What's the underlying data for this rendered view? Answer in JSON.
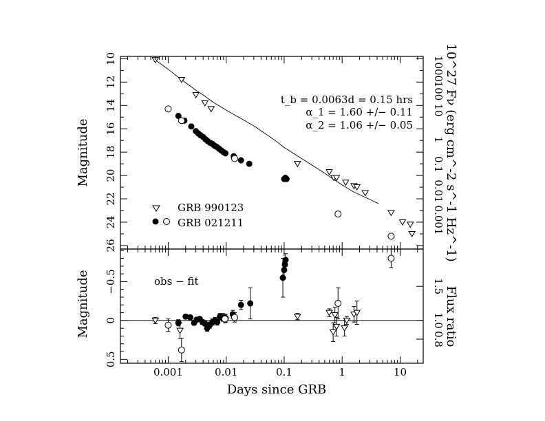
{
  "chart_data": [
    {
      "type": "scatter",
      "panel": "light curve",
      "xlabel": "Days since GRB",
      "ylabel": "Magnitude",
      "right_ylabel": "10^27 Fν (erg cm^-2 s^-1 Hz^-1)",
      "x_scale": "log",
      "xlim": [
        0.00015,
        25
      ],
      "ylim": [
        26.3,
        9.8
      ],
      "y_inverted": true,
      "y_ticks": [
        10,
        12,
        14,
        16,
        18,
        20,
        22,
        24,
        26
      ],
      "right_ticks": [
        "1000",
        "100",
        "10",
        "1",
        "0.1",
        "0.01",
        "0.001"
      ],
      "annotations": {
        "tb": "t_b = 0.0063d = 0.15 hrs",
        "alpha1": "α_1 = 1.60 +/− 0.11",
        "alpha2": "α_2 = 1.06 +/− 0.05"
      },
      "legend": {
        "placement": "bottom-left",
        "entries": [
          {
            "label": "GRB 990123",
            "markers": [
              "open-triangle-down"
            ]
          },
          {
            "label": "GRB 021211",
            "markers": [
              "filled-circle",
              "open-circle"
            ]
          }
        ]
      },
      "fit_line": {
        "label": "broken power-law fit",
        "x": [
          0.0006,
          0.00075,
          0.001,
          0.0013,
          0.0017,
          0.002,
          0.0025,
          0.003,
          0.004,
          0.005,
          0.0063,
          0.008,
          0.01,
          0.015,
          0.02,
          0.03,
          0.05,
          0.07,
          0.1,
          0.15,
          0.2,
          0.3,
          0.5,
          0.7,
          1.0,
          1.5,
          2.0,
          3.0,
          4.2
        ],
        "y": [
          10.1,
          10.45,
          10.9,
          11.35,
          11.8,
          12.05,
          12.4,
          12.7,
          13.1,
          13.45,
          13.8,
          14.1,
          14.4,
          14.9,
          15.25,
          15.75,
          16.5,
          17.0,
          17.6,
          18.15,
          18.55,
          19.1,
          19.8,
          20.3,
          20.8,
          21.35,
          21.65,
          22.05,
          22.4
        ]
      },
      "series": [
        {
          "name": "GRB 990123",
          "marker": "open-triangle-down",
          "points": [
            {
              "x": 0.0006,
              "y": 10.1
            },
            {
              "x": 0.0017,
              "y": 11.8
            },
            {
              "x": 0.003,
              "y": 13.1
            },
            {
              "x": 0.0043,
              "y": 13.8
            },
            {
              "x": 0.0055,
              "y": 14.3
            },
            {
              "x": 0.17,
              "y": 19.0
            },
            {
              "x": 0.6,
              "y": 19.7
            },
            {
              "x": 0.72,
              "y": 20.2
            },
            {
              "x": 0.8,
              "y": 20.2
            },
            {
              "x": 1.15,
              "y": 20.6
            },
            {
              "x": 1.6,
              "y": 20.9
            },
            {
              "x": 1.8,
              "y": 21.0
            },
            {
              "x": 2.5,
              "y": 21.5
            },
            {
              "x": 7.0,
              "y": 23.2
            },
            {
              "x": 11.0,
              "y": 24.0
            },
            {
              "x": 15.0,
              "y": 24.2
            },
            {
              "x": 16.0,
              "y": 25.0
            }
          ]
        },
        {
          "name": "GRB 021211",
          "marker": "filled-circle",
          "points": [
            {
              "x": 0.0015,
              "y": 14.9
            },
            {
              "x": 0.0019,
              "y": 15.3
            },
            {
              "x": 0.0025,
              "y": 15.8
            },
            {
              "x": 0.003,
              "y": 16.2
            },
            {
              "x": 0.0033,
              "y": 16.4
            },
            {
              "x": 0.0036,
              "y": 16.55
            },
            {
              "x": 0.004,
              "y": 16.7
            },
            {
              "x": 0.0044,
              "y": 16.9
            },
            {
              "x": 0.0048,
              "y": 17.05
            },
            {
              "x": 0.0053,
              "y": 17.2
            },
            {
              "x": 0.0058,
              "y": 17.3
            },
            {
              "x": 0.0063,
              "y": 17.45
            },
            {
              "x": 0.0069,
              "y": 17.55
            },
            {
              "x": 0.0075,
              "y": 17.7
            },
            {
              "x": 0.0082,
              "y": 17.85
            },
            {
              "x": 0.009,
              "y": 18.0
            },
            {
              "x": 0.0097,
              "y": 18.1
            },
            {
              "x": 0.0135,
              "y": 18.35
            },
            {
              "x": 0.018,
              "y": 18.7
            },
            {
              "x": 0.025,
              "y": 19.0
            },
            {
              "x": 0.1,
              "y": 20.3
            },
            {
              "x": 0.105,
              "y": 20.2
            },
            {
              "x": 0.11,
              "y": 20.3
            }
          ]
        },
        {
          "name": "GRB 021211",
          "marker": "open-circle",
          "points": [
            {
              "x": 0.001,
              "y": 14.3
            },
            {
              "x": 0.0017,
              "y": 15.3
            },
            {
              "x": 0.014,
              "y": 18.55
            },
            {
              "x": 0.85,
              "y": 23.3
            },
            {
              "x": 7.0,
              "y": 25.2
            }
          ]
        }
      ]
    },
    {
      "type": "scatter",
      "panel": "residuals",
      "xlabel": "Days since GRB",
      "ylabel": "Magnitude",
      "right_ylabel": "Flux ratio",
      "annotation": "obs − fit",
      "x_scale": "log",
      "xlim": [
        0.00015,
        25
      ],
      "ylim": [
        0.55,
        -0.92
      ],
      "y_inverted": true,
      "y_ticks": [
        -0.5,
        0,
        0.5
      ],
      "y_tick_labels": [
        "−0.5",
        "0",
        "0.5"
      ],
      "right_ticks": [
        {
          "label": "1.5",
          "mag": -0.44
        },
        {
          "label": "1.0",
          "mag": 0.0
        },
        {
          "label": "0.8",
          "mag": 0.24
        }
      ],
      "zero_line": 0,
      "series": [
        {
          "name": "GRB 990123",
          "marker": "open-triangle-down",
          "points": [
            {
              "x": 0.0006,
              "y": 0.0,
              "err": 0.04
            },
            {
              "x": 0.0016,
              "y": 0.13,
              "err": 0.1
            },
            {
              "x": 0.17,
              "y": -0.05,
              "err": 0.04
            },
            {
              "x": 0.6,
              "y": -0.1,
              "err": 0.05
            },
            {
              "x": 0.7,
              "y": 0.15,
              "err": 0.12
            },
            {
              "x": 0.75,
              "y": -0.07,
              "err": 0.1
            },
            {
              "x": 0.8,
              "y": 0.08,
              "err": 0.12
            },
            {
              "x": 1.1,
              "y": 0.1,
              "err": 0.1
            },
            {
              "x": 1.2,
              "y": 0.0,
              "err": 0.05
            },
            {
              "x": 1.6,
              "y": -0.08,
              "err": 0.1
            },
            {
              "x": 1.8,
              "y": -0.1,
              "err": 0.15
            }
          ]
        },
        {
          "name": "GRB 021211",
          "marker": "filled-circle",
          "points": [
            {
              "x": 0.0015,
              "y": 0.03,
              "err": 0.04
            },
            {
              "x": 0.002,
              "y": -0.05,
              "err": 0.03
            },
            {
              "x": 0.0024,
              "y": -0.04,
              "err": 0.03
            },
            {
              "x": 0.0028,
              "y": 0.03,
              "err": 0.03
            },
            {
              "x": 0.0031,
              "y": -0.01,
              "err": 0.03
            },
            {
              "x": 0.0035,
              "y": -0.02,
              "err": 0.03
            },
            {
              "x": 0.0039,
              "y": 0.02,
              "err": 0.03
            },
            {
              "x": 0.0043,
              "y": 0.04,
              "err": 0.03
            },
            {
              "x": 0.0047,
              "y": 0.1,
              "err": 0.04
            },
            {
              "x": 0.0052,
              "y": 0.06,
              "err": 0.04
            },
            {
              "x": 0.0058,
              "y": 0.02,
              "err": 0.04
            },
            {
              "x": 0.0064,
              "y": 0.0,
              "err": 0.04
            },
            {
              "x": 0.007,
              "y": 0.02,
              "err": 0.04
            },
            {
              "x": 0.0078,
              "y": -0.05,
              "err": 0.04
            },
            {
              "x": 0.0088,
              "y": -0.04,
              "err": 0.05
            },
            {
              "x": 0.0098,
              "y": -0.03,
              "err": 0.05
            },
            {
              "x": 0.013,
              "y": -0.08,
              "err": 0.05
            },
            {
              "x": 0.018,
              "y": -0.2,
              "err": 0.06
            },
            {
              "x": 0.026,
              "y": -0.22,
              "err": 0.2
            },
            {
              "x": 0.095,
              "y": -0.55,
              "err": 0.25
            },
            {
              "x": 0.1,
              "y": -0.65,
              "err": 0.1
            },
            {
              "x": 0.103,
              "y": -0.72,
              "err": 0.08
            },
            {
              "x": 0.106,
              "y": -0.78,
              "err": 0.08
            }
          ]
        },
        {
          "name": "GRB 021211",
          "marker": "open-circle",
          "points": [
            {
              "x": 0.001,
              "y": 0.06,
              "err": 0.08
            },
            {
              "x": 0.0017,
              "y": 0.38,
              "err": 0.15
            },
            {
              "x": 0.0095,
              "y": -0.02,
              "err": 0.05
            },
            {
              "x": 0.014,
              "y": -0.04,
              "err": 0.06
            },
            {
              "x": 0.85,
              "y": -0.22,
              "err": 0.2
            },
            {
              "x": 7.0,
              "y": -0.8,
              "err": 0.12
            }
          ]
        }
      ]
    }
  ]
}
